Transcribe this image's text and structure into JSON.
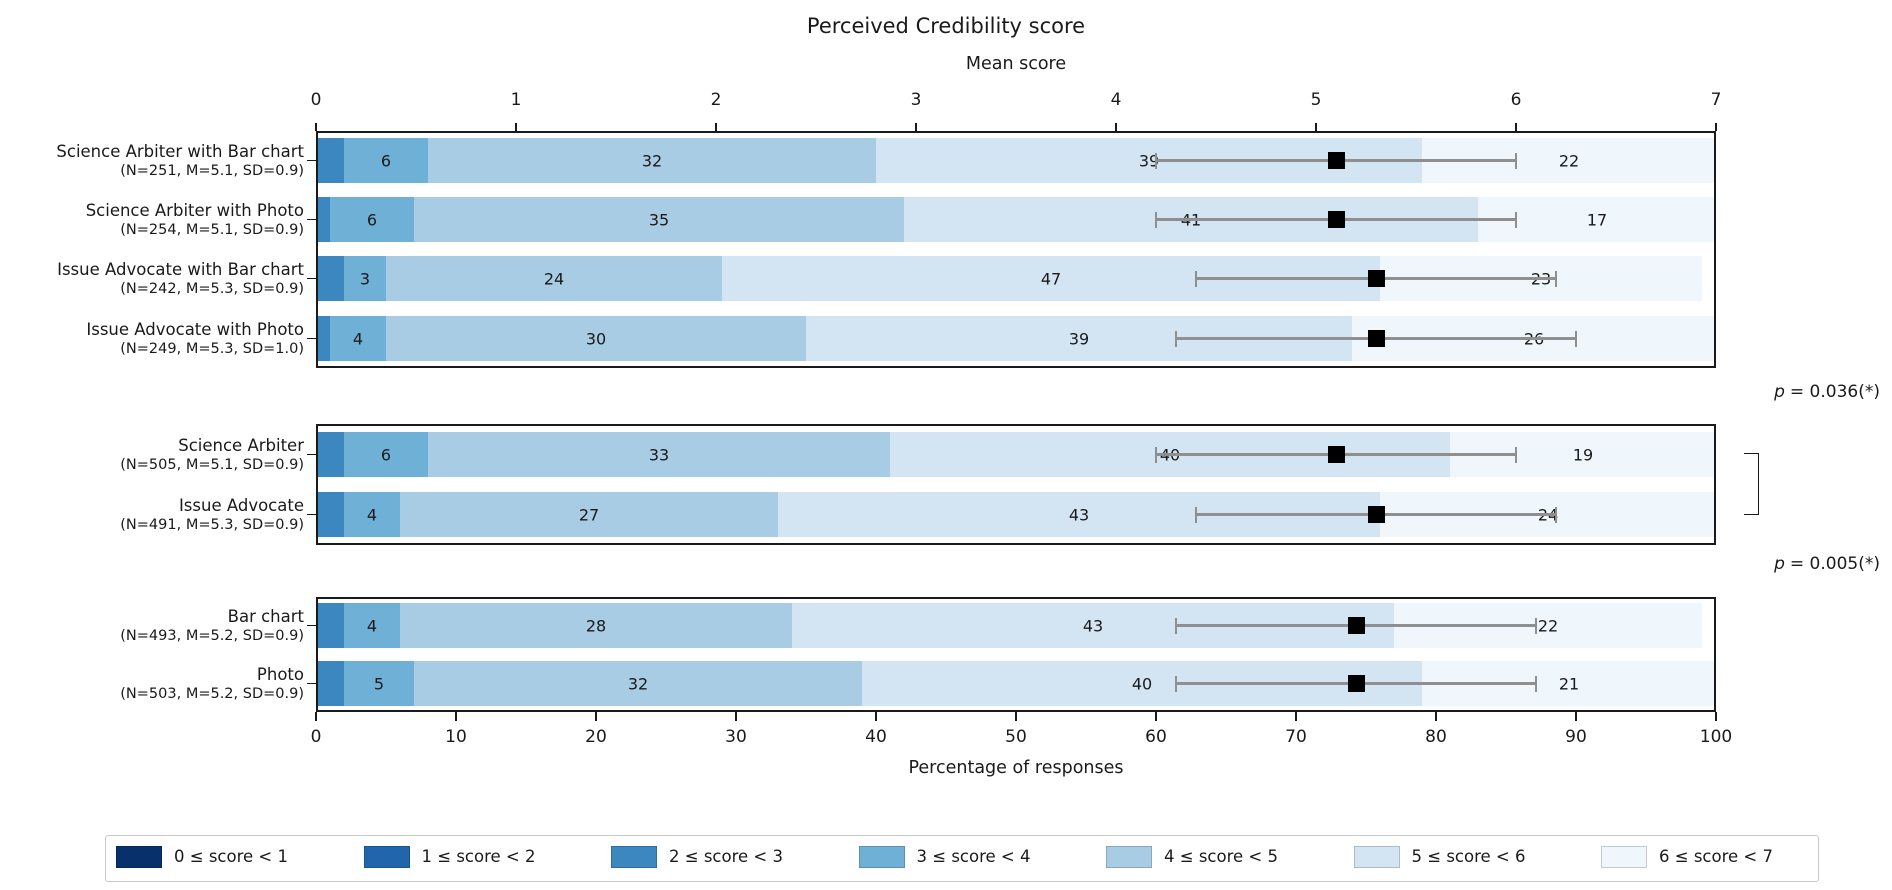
{
  "title": "Perceived Credibility score",
  "chart_data": {
    "type": "bar",
    "stacked": true,
    "orientation": "horizontal",
    "title": "Perceived Credibility score",
    "score_axis": {
      "label": "Mean score",
      "min": 0,
      "max": 7,
      "ticks": [
        0,
        1,
        2,
        3,
        4,
        5,
        6,
        7
      ],
      "position": "top"
    },
    "percent_axis": {
      "label": "Percentage of responses",
      "min": 0,
      "max": 100,
      "ticks": [
        0,
        10,
        20,
        30,
        40,
        50,
        60,
        70,
        80,
        90,
        100
      ],
      "position": "bottom"
    },
    "bins": [
      {
        "label": "0 ≤ score < 1",
        "color": "#08306b"
      },
      {
        "label": "1 ≤ score < 2",
        "color": "#2166ac"
      },
      {
        "label": "2 ≤ score < 3",
        "color": "#3c87c0"
      },
      {
        "label": "3 ≤ score < 4",
        "color": "#6fb0d6"
      },
      {
        "label": "4 ≤ score < 5",
        "color": "#a8cce4"
      },
      {
        "label": "5 ≤ score < 6",
        "color": "#d3e4f3"
      },
      {
        "label": "6 ≤ score < 7",
        "color": "#eff6fc"
      }
    ],
    "panels": [
      {
        "rows": [
          {
            "label": "Science Arbiter with Bar chart",
            "sublabel": "(N=251, M=5.1, SD=0.9)",
            "n": 251,
            "mean": 5.1,
            "sd": 0.9,
            "percentages": [
              0,
              0,
              2,
              6,
              32,
              39,
              22
            ]
          },
          {
            "label": "Science Arbiter with Photo",
            "sublabel": "(N=254, M=5.1, SD=0.9)",
            "n": 254,
            "mean": 5.1,
            "sd": 0.9,
            "percentages": [
              0,
              0,
              1,
              6,
              35,
              41,
              17
            ]
          },
          {
            "label": "Issue Advocate with Bar chart",
            "sublabel": "(N=242, M=5.3, SD=0.9)",
            "n": 242,
            "mean": 5.3,
            "sd": 0.9,
            "percentages": [
              0,
              0,
              2,
              3,
              24,
              47,
              23
            ]
          },
          {
            "label": "Issue Advocate with Photo",
            "sublabel": "(N=249, M=5.3, SD=1.0)",
            "n": 249,
            "mean": 5.3,
            "sd": 1.0,
            "percentages": [
              0,
              0,
              1,
              4,
              30,
              39,
              26
            ]
          }
        ]
      },
      {
        "rows": [
          {
            "label": "Science Arbiter",
            "sublabel": "(N=505, M=5.1, SD=0.9)",
            "n": 505,
            "mean": 5.1,
            "sd": 0.9,
            "percentages": [
              0,
              0,
              2,
              6,
              33,
              40,
              19
            ]
          },
          {
            "label": "Issue Advocate",
            "sublabel": "(N=491, M=5.3, SD=0.9)",
            "n": 491,
            "mean": 5.3,
            "sd": 0.9,
            "percentages": [
              0,
              0,
              2,
              4,
              27,
              43,
              24
            ]
          }
        ]
      },
      {
        "rows": [
          {
            "label": "Bar chart",
            "sublabel": "(N=493, M=5.2, SD=0.9)",
            "n": 493,
            "mean": 5.2,
            "sd": 0.9,
            "percentages": [
              0,
              0,
              2,
              4,
              28,
              43,
              22
            ]
          },
          {
            "label": "Photo",
            "sublabel": "(N=503, M=5.2, SD=0.9)",
            "n": 503,
            "mean": 5.2,
            "sd": 0.9,
            "percentages": [
              0,
              0,
              2,
              5,
              32,
              40,
              21
            ]
          }
        ]
      }
    ],
    "annotations": [
      {
        "symbol": "p",
        "text": "= 0.036(*)"
      },
      {
        "symbol": "p",
        "text": "= 0.005(*)"
      }
    ]
  },
  "colors": {
    "error_bar": "#8f8f8f",
    "mean_marker": "#000000",
    "panel_border": "#1a1a1a",
    "text": "#1a1a1a",
    "legend_border": "#c9c9c9"
  }
}
